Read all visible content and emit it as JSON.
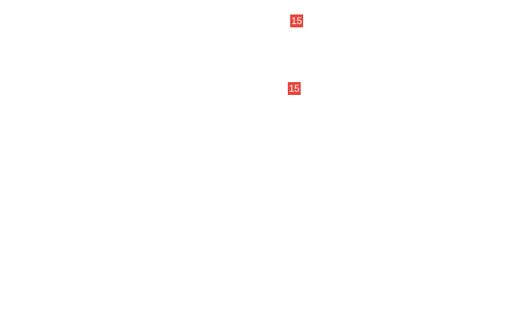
{
  "badges": [
    {
      "count": "15"
    },
    {
      "count": "15"
    }
  ],
  "colors": {
    "badge_background": "#e8453c",
    "badge_text": "#ffffff"
  }
}
